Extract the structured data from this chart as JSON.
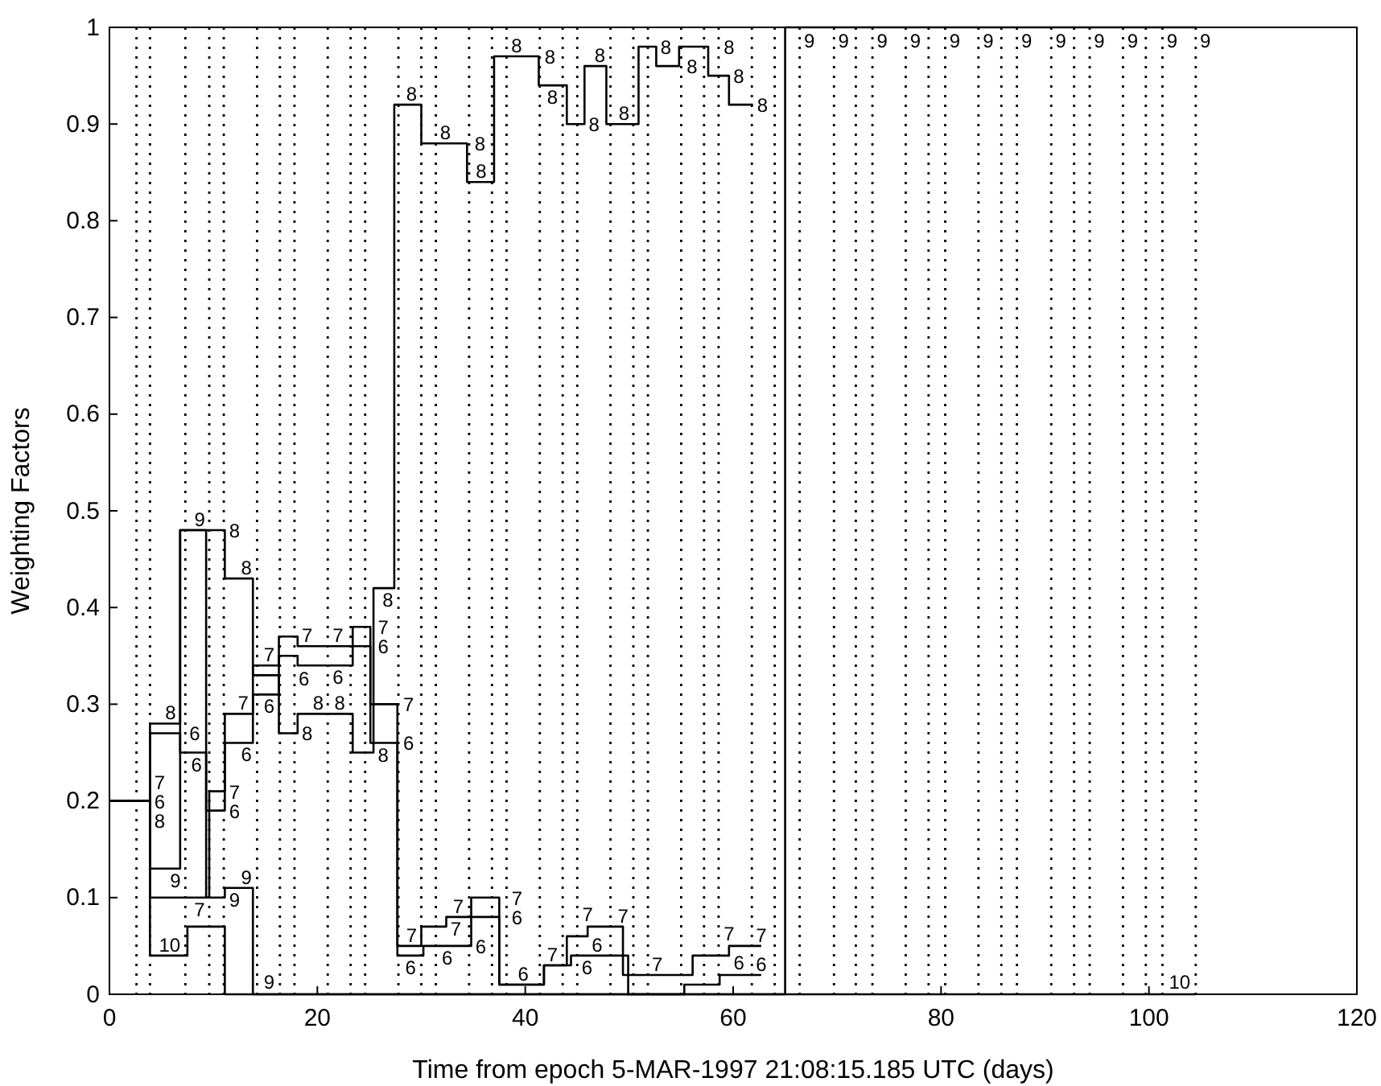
{
  "chart_data": {
    "type": "step",
    "xlabel": "Time from epoch 5-MAR-1997 21:08:15.185 UTC (days)",
    "ylabel": "Weighting Factors",
    "xlim": [
      0,
      120
    ],
    "ylim": [
      0,
      1
    ],
    "xticks": [
      0,
      20,
      40,
      60,
      80,
      100,
      120
    ],
    "yticks": [
      0,
      0.1,
      0.2,
      0.3,
      0.4,
      0.5,
      0.6,
      0.7,
      0.8,
      0.9,
      1
    ],
    "series": [
      {
        "name": "6",
        "color": "#000000",
        "x": [
          0,
          3.9,
          6.8,
          9.3,
          11.1,
          13.8,
          16.3,
          18.1,
          20.9,
          23.4,
          25.1,
          27.7,
          30.2,
          32.5,
          34.8,
          37.5,
          39.8,
          41.8,
          44.4,
          46.3,
          49.9,
          53.0,
          55.3,
          58.7,
          62.7
        ],
        "values": [
          0.2,
          0.2,
          0.27,
          0.25,
          0.19,
          0.26,
          0.31,
          0.35,
          0.34,
          0.34,
          0.36,
          0.26,
          0.04,
          0.05,
          0.05,
          0.08,
          0.01,
          0.01,
          0.03,
          0.04,
          0.04,
          0,
          0,
          0.01,
          0.02
        ]
      },
      {
        "name": "7",
        "color": "#000000",
        "x": [
          0,
          3.9,
          9.6,
          11.1,
          13.8,
          16.3,
          18.1,
          20.9,
          23.4,
          25.1,
          27.7,
          30.0,
          32.4,
          34.8,
          37.5,
          39.8,
          41.8,
          44.0,
          46.0,
          49.4,
          51.0,
          53.4,
          56.1,
          59.6,
          62.7
        ],
        "values": [
          0.2,
          0.2,
          0.1,
          0.21,
          0.29,
          0.34,
          0.37,
          0.36,
          0.36,
          0.38,
          0.3,
          0.05,
          0.07,
          0.08,
          0.1,
          0.01,
          0.01,
          0.03,
          0.06,
          0.07,
          0.02,
          0.02,
          0.02,
          0.04,
          0.05
        ]
      },
      {
        "name": "8",
        "color": "#000000",
        "x": [
          0,
          3.9,
          6.8,
          11.1,
          13.8,
          16.3,
          18.1,
          20.7,
          23.4,
          25.4,
          27.4,
          30.0,
          31.7,
          34.4,
          37.0,
          38.7,
          41.3,
          44.0,
          45.7,
          47.8,
          50.9,
          52.6,
          54.8,
          57.6,
          59.6,
          61.9
        ],
        "values": [
          0.2,
          0.2,
          0.28,
          0.48,
          0.43,
          0.33,
          0.27,
          0.29,
          0.29,
          0.25,
          0.42,
          0.92,
          0.88,
          0.88,
          0.84,
          0.97,
          0.97,
          0.94,
          0.9,
          0.96,
          0.9,
          0.98,
          0.96,
          0.98,
          0.95,
          0.92
        ]
      },
      {
        "name": "9",
        "color": "#000000",
        "x": [
          0,
          3.9,
          6.8,
          9.3,
          11.1,
          13.8,
          16.3,
          65.0,
          66.4,
          69.7,
          71.8,
          73.4,
          76.6,
          78.8,
          80.4,
          83.6,
          85.8,
          87.3,
          90.6,
          92.8,
          94.3,
          97.5,
          99.7,
          101.3,
          104.5
        ],
        "values": [
          0.2,
          0.2,
          0.13,
          0.48,
          0.1,
          0.11,
          0,
          0,
          1,
          1,
          1,
          1,
          1,
          1,
          1,
          1,
          1,
          1,
          1,
          1,
          1,
          1,
          1,
          1,
          1
        ]
      },
      {
        "name": "10",
        "color": "#000000",
        "x": [
          0,
          3.9,
          7.5,
          11.1,
          104.5
        ],
        "values": [
          0.2,
          0.2,
          0.04,
          0.07,
          0
        ]
      }
    ],
    "ref_lines": [
      {
        "axis": "x",
        "value": 2.6,
        "line_style": "dotted",
        "color": "#000000"
      },
      {
        "axis": "x",
        "value": 3.9,
        "line_style": "dotted",
        "color": "#000000"
      },
      {
        "axis": "x",
        "value": 7.3,
        "line_style": "dotted",
        "color": "#000000"
      },
      {
        "axis": "x",
        "value": 9.6,
        "line_style": "dotted",
        "color": "#000000"
      },
      {
        "axis": "x",
        "value": 11.0,
        "line_style": "dotted",
        "color": "#000000"
      },
      {
        "axis": "x",
        "value": 14.2,
        "line_style": "dotted",
        "color": "#000000"
      },
      {
        "axis": "x",
        "value": 16.4,
        "line_style": "dotted",
        "color": "#000000"
      },
      {
        "axis": "x",
        "value": 17.8,
        "line_style": "dotted",
        "color": "#000000"
      },
      {
        "axis": "x",
        "value": 21.0,
        "line_style": "dotted",
        "color": "#000000"
      },
      {
        "axis": "x",
        "value": 23.2,
        "line_style": "dotted",
        "color": "#000000"
      },
      {
        "axis": "x",
        "value": 24.6,
        "line_style": "dotted",
        "color": "#000000"
      },
      {
        "axis": "x",
        "value": 27.8,
        "line_style": "dotted",
        "color": "#000000"
      },
      {
        "axis": "x",
        "value": 30.0,
        "line_style": "dotted",
        "color": "#000000"
      },
      {
        "axis": "x",
        "value": 31.4,
        "line_style": "dotted",
        "color": "#000000"
      },
      {
        "axis": "x",
        "value": 34.6,
        "line_style": "dotted",
        "color": "#000000"
      },
      {
        "axis": "x",
        "value": 36.8,
        "line_style": "dotted",
        "color": "#000000"
      },
      {
        "axis": "x",
        "value": 38.2,
        "line_style": "dotted",
        "color": "#000000"
      },
      {
        "axis": "x",
        "value": 41.4,
        "line_style": "dotted",
        "color": "#000000"
      },
      {
        "axis": "x",
        "value": 43.6,
        "line_style": "dotted",
        "color": "#000000"
      },
      {
        "axis": "x",
        "value": 45.0,
        "line_style": "dotted",
        "color": "#000000"
      },
      {
        "axis": "x",
        "value": 48.2,
        "line_style": "dotted",
        "color": "#000000"
      },
      {
        "axis": "x",
        "value": 50.4,
        "line_style": "dotted",
        "color": "#000000"
      },
      {
        "axis": "x",
        "value": 51.8,
        "line_style": "dotted",
        "color": "#000000"
      },
      {
        "axis": "x",
        "value": 55.0,
        "line_style": "dotted",
        "color": "#000000"
      },
      {
        "axis": "x",
        "value": 57.2,
        "line_style": "dotted",
        "color": "#000000"
      },
      {
        "axis": "x",
        "value": 58.6,
        "line_style": "dotted",
        "color": "#000000"
      },
      {
        "axis": "x",
        "value": 61.8,
        "line_style": "dotted",
        "color": "#000000"
      },
      {
        "axis": "x",
        "value": 64.0,
        "line_style": "dotted",
        "color": "#000000"
      },
      {
        "axis": "x",
        "value": 66.4,
        "line_style": "dotted",
        "color": "#000000"
      },
      {
        "axis": "x",
        "value": 69.7,
        "line_style": "dotted",
        "color": "#000000"
      },
      {
        "axis": "x",
        "value": 71.8,
        "line_style": "dotted",
        "color": "#000000"
      },
      {
        "axis": "x",
        "value": 73.4,
        "line_style": "dotted",
        "color": "#000000"
      },
      {
        "axis": "x",
        "value": 76.6,
        "line_style": "dotted",
        "color": "#000000"
      },
      {
        "axis": "x",
        "value": 78.8,
        "line_style": "dotted",
        "color": "#000000"
      },
      {
        "axis": "x",
        "value": 80.4,
        "line_style": "dotted",
        "color": "#000000"
      },
      {
        "axis": "x",
        "value": 83.6,
        "line_style": "dotted",
        "color": "#000000"
      },
      {
        "axis": "x",
        "value": 85.8,
        "line_style": "dotted",
        "color": "#000000"
      },
      {
        "axis": "x",
        "value": 87.3,
        "line_style": "dotted",
        "color": "#000000"
      },
      {
        "axis": "x",
        "value": 90.6,
        "line_style": "dotted",
        "color": "#000000"
      },
      {
        "axis": "x",
        "value": 92.8,
        "line_style": "dotted",
        "color": "#000000"
      },
      {
        "axis": "x",
        "value": 94.3,
        "line_style": "dotted",
        "color": "#000000"
      },
      {
        "axis": "x",
        "value": 97.5,
        "line_style": "dotted",
        "color": "#000000"
      },
      {
        "axis": "x",
        "value": 99.7,
        "line_style": "dotted",
        "color": "#000000"
      },
      {
        "axis": "x",
        "value": 101.3,
        "line_style": "dotted",
        "color": "#000000"
      },
      {
        "axis": "x",
        "value": 104.5,
        "line_style": "dotted",
        "color": "#000000"
      }
    ],
    "line_style": "solid"
  }
}
